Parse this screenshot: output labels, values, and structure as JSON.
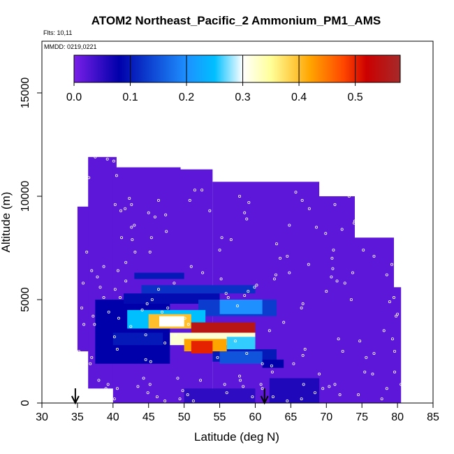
{
  "chart_data": {
    "type": "heatmap",
    "title": "ATOM2 Northeast_Pacific_2 Ammonium_PM1_AMS",
    "flights_note": "Flts: 10,11",
    "dates_note": "MMDD: 0219,0221",
    "xlabel": "Latitude (deg N)",
    "ylabel": "Altitude (m)",
    "xlim": [
      30,
      85
    ],
    "ylim": [
      0,
      17500
    ],
    "xticks": [
      "30",
      "35",
      "40",
      "45",
      "50",
      "55",
      "60",
      "65",
      "70",
      "75",
      "80",
      "85"
    ],
    "yticks": [
      "0",
      "5000",
      "10000",
      "15000"
    ],
    "colorbar": {
      "range": [
        0,
        0.58
      ],
      "ticks": [
        "0.0",
        "0.1",
        "0.2",
        "0.3",
        "0.4",
        "0.5"
      ],
      "tick_values": [
        0,
        0.1,
        0.2,
        0.3,
        0.4,
        0.5
      ],
      "colors": [
        "#7a1fe8",
        "#0000aa",
        "#1e90ff",
        "#00bfff",
        "#ffffff",
        "#ffff99",
        "#ffa500",
        "#ff4500",
        "#cc0000",
        "#a52a2a"
      ],
      "color_stops": [
        0,
        0.08,
        0.2,
        0.25,
        0.3,
        0.35,
        0.42,
        0.48,
        0.52,
        0.58
      ]
    },
    "background_value": 0.02,
    "coverage": [
      {
        "lat": [
          35,
          37.5
        ],
        "alt": [
          2500,
          9500
        ]
      },
      {
        "lat": [
          36.5,
          40.5
        ],
        "alt": [
          700,
          11900
        ]
      },
      {
        "lat": [
          40,
          49.5
        ],
        "alt": [
          0,
          11400
        ]
      },
      {
        "lat": [
          49,
          54
        ],
        "alt": [
          0,
          11300
        ]
      },
      {
        "lat": [
          54,
          69
        ],
        "alt": [
          0,
          10700
        ]
      },
      {
        "lat": [
          68.5,
          74
        ],
        "alt": [
          0,
          10000
        ]
      },
      {
        "lat": [
          74,
          79.5
        ],
        "alt": [
          0,
          8000
        ]
      },
      {
        "lat": [
          79.5,
          80.5
        ],
        "alt": [
          0,
          5600
        ]
      }
    ],
    "features": [
      {
        "lat": [
          37.5,
          48
        ],
        "alt": [
          1900,
          5000
        ],
        "value": 0.08
      },
      {
        "lat": [
          41.5,
          55
        ],
        "alt": [
          4800,
          5300
        ],
        "value": 0.09
      },
      {
        "lat": [
          44,
          60
        ],
        "alt": [
          5300,
          5700
        ],
        "value": 0.12
      },
      {
        "lat": [
          52,
          63
        ],
        "alt": [
          4200,
          5000
        ],
        "value": 0.13
      },
      {
        "lat": [
          55,
          61
        ],
        "alt": [
          4300,
          5000
        ],
        "value": 0.2
      },
      {
        "lat": [
          43,
          50
        ],
        "alt": [
          6000,
          6300
        ],
        "value": 0.1
      },
      {
        "lat": [
          54,
          63
        ],
        "alt": [
          2000,
          2600
        ],
        "value": 0.1
      },
      {
        "lat": [
          55,
          61
        ],
        "alt": [
          1900,
          2500
        ],
        "value": 0.15
      },
      {
        "lat": [
          61,
          64
        ],
        "alt": [
          1700,
          2100
        ],
        "value": 0.08
      },
      {
        "lat": [
          42,
          53
        ],
        "alt": [
          3600,
          4500
        ],
        "value": 0.25
      },
      {
        "lat": [
          45,
          51
        ],
        "alt": [
          3600,
          4300
        ],
        "value": 0.4
      },
      {
        "lat": [
          46.5,
          50
        ],
        "alt": [
          3700,
          4200
        ],
        "value": 0.3
      },
      {
        "lat": [
          51,
          60
        ],
        "alt": [
          3200,
          3900
        ],
        "value": 0.55
      },
      {
        "lat": [
          48,
          60
        ],
        "alt": [
          2800,
          3400
        ],
        "value": 0.32
      },
      {
        "lat": [
          50,
          56
        ],
        "alt": [
          2500,
          3100
        ],
        "value": 0.42
      },
      {
        "lat": [
          51,
          54
        ],
        "alt": [
          2400,
          3000
        ],
        "value": 0.5
      },
      {
        "lat": [
          56,
          60
        ],
        "alt": [
          2600,
          3200
        ],
        "value": 0.26
      },
      {
        "lat": [
          40,
          47
        ],
        "alt": [
          2800,
          3400
        ],
        "value": 0.1
      },
      {
        "lat": [
          62,
          69
        ],
        "alt": [
          0,
          1200
        ],
        "value": 0.06
      },
      {
        "lat": [
          50,
          60
        ],
        "alt": [
          0,
          700
        ],
        "value": 0.05
      }
    ],
    "sample_points": [
      [
        35.8,
        10750
      ],
      [
        36.6,
        10900
      ],
      [
        37.5,
        11900
      ],
      [
        39.2,
        11800
      ],
      [
        40.1,
        11700
      ],
      [
        40.5,
        11000
      ],
      [
        40.3,
        9600
      ],
      [
        41.1,
        9300
      ],
      [
        41.7,
        9400
      ],
      [
        42.6,
        9600
      ],
      [
        42.3,
        9900
      ],
      [
        41.2,
        8000
      ],
      [
        41.8,
        6800
      ],
      [
        40.3,
        5500
      ],
      [
        41.0,
        5100
      ],
      [
        40.8,
        4100
      ],
      [
        40.2,
        3200
      ],
      [
        39.4,
        4400
      ],
      [
        37.2,
        4200
      ],
      [
        37.4,
        3800
      ],
      [
        40.6,
        2600
      ],
      [
        44.6,
        2100
      ],
      [
        45.3,
        2000
      ],
      [
        47.3,
        2900
      ],
      [
        48.8,
        3300
      ],
      [
        50.1,
        4100
      ],
      [
        50.6,
        3800
      ],
      [
        49.1,
        1200
      ],
      [
        49.8,
        600
      ],
      [
        50.5,
        400
      ],
      [
        49.4,
        200
      ],
      [
        45.2,
        900
      ],
      [
        44.3,
        1200
      ],
      [
        44.9,
        500
      ],
      [
        40.6,
        700
      ],
      [
        40.2,
        200
      ],
      [
        43.5,
        800
      ],
      [
        46.2,
        300
      ],
      [
        47.3,
        100
      ],
      [
        51.3,
        100
      ],
      [
        52.3,
        1100
      ],
      [
        54.7,
        2200
      ],
      [
        55.7,
        900
      ],
      [
        56.0,
        500
      ],
      [
        58.3,
        800
      ],
      [
        59.6,
        300
      ],
      [
        61.0,
        700
      ],
      [
        64.5,
        100
      ],
      [
        66.5,
        200
      ],
      [
        68.4,
        500
      ],
      [
        69.5,
        700
      ],
      [
        70.4,
        800
      ],
      [
        71.2,
        900
      ],
      [
        71.9,
        400
      ],
      [
        74.5,
        400
      ],
      [
        75.4,
        1500
      ],
      [
        76.5,
        1400
      ],
      [
        77.8,
        200
      ],
      [
        78.5,
        700
      ],
      [
        79.6,
        1500
      ],
      [
        80.5,
        900
      ],
      [
        79.6,
        2500
      ],
      [
        79.3,
        3100
      ],
      [
        78.1,
        3500
      ],
      [
        79.8,
        4200
      ],
      [
        78.9,
        4900
      ],
      [
        79.5,
        5100
      ],
      [
        80.0,
        4300
      ],
      [
        78.5,
        6200
      ],
      [
        79.2,
        6700
      ],
      [
        76.7,
        7100
      ],
      [
        75.2,
        7400
      ],
      [
        73.7,
        6300
      ],
      [
        71.5,
        5900
      ],
      [
        70.0,
        5400
      ],
      [
        70.7,
        6100
      ],
      [
        70.8,
        7000
      ],
      [
        72.2,
        8400
      ],
      [
        73.9,
        8700
      ],
      [
        74.0,
        8800
      ],
      [
        75.1,
        9000
      ],
      [
        77.8,
        9100
      ],
      [
        76.8,
        9600
      ],
      [
        76.3,
        9100
      ],
      [
        73.2,
        10000
      ],
      [
        71.2,
        9600
      ],
      [
        69.7,
        10100
      ],
      [
        69.2,
        10500
      ],
      [
        66.6,
        9800
      ],
      [
        65.7,
        10200
      ],
      [
        64.8,
        8600
      ],
      [
        63.0,
        7700
      ],
      [
        62.7,
        6000
      ],
      [
        60.2,
        5700
      ],
      [
        59.0,
        5400
      ],
      [
        58.5,
        5200
      ],
      [
        57.5,
        4700
      ],
      [
        56.2,
        5100
      ],
      [
        55.9,
        5300
      ],
      [
        55.2,
        6000
      ],
      [
        52.6,
        6300
      ],
      [
        51.0,
        6600
      ],
      [
        48.6,
        5800
      ],
      [
        46.4,
        5500
      ],
      [
        45.5,
        5000
      ],
      [
        47.7,
        4600
      ],
      [
        46.9,
        4400
      ],
      [
        44.8,
        4800
      ],
      [
        44.1,
        4500
      ],
      [
        44.6,
        3300
      ],
      [
        42.5,
        3700
      ],
      [
        57.2,
        3000
      ],
      [
        58.8,
        2400
      ],
      [
        61.0,
        1900
      ],
      [
        62.3,
        1800
      ],
      [
        62.4,
        1500
      ],
      [
        57.9,
        1100
      ],
      [
        57.8,
        1300
      ],
      [
        60.8,
        900
      ],
      [
        59.9,
        5600
      ],
      [
        55.3,
        8000
      ],
      [
        55.0,
        7400
      ],
      [
        56.6,
        7900
      ],
      [
        58.8,
        8900
      ],
      [
        58.5,
        9200
      ],
      [
        57.8,
        10000
      ],
      [
        59.1,
        9700
      ],
      [
        53.6,
        9300
      ],
      [
        51.5,
        10300
      ],
      [
        52.5,
        10300
      ],
      [
        50.8,
        9800
      ],
      [
        46.4,
        9800
      ],
      [
        45.9,
        9000
      ],
      [
        47.5,
        8300
      ],
      [
        47.4,
        9100
      ],
      [
        45.0,
        9200
      ],
      [
        45.4,
        8000
      ],
      [
        45.2,
        7300
      ],
      [
        43.1,
        7300
      ],
      [
        42.6,
        8500
      ],
      [
        43.0,
        8600
      ],
      [
        42.7,
        7900
      ],
      [
        62.0,
        3500
      ],
      [
        64.0,
        3900
      ],
      [
        66.5,
        4600
      ],
      [
        66.7,
        4800
      ],
      [
        67.5,
        6700
      ],
      [
        64.8,
        6300
      ],
      [
        62.9,
        6200
      ],
      [
        63.5,
        7000
      ],
      [
        64.5,
        7100
      ],
      [
        67.6,
        9400
      ],
      [
        68.6,
        8500
      ],
      [
        69.9,
        8200
      ],
      [
        71.0,
        7400
      ],
      [
        70.9,
        6500
      ],
      [
        72.6,
        5800
      ],
      [
        73.5,
        5000
      ],
      [
        71.7,
        3100
      ],
      [
        74.7,
        3000
      ],
      [
        75.6,
        2200
      ],
      [
        76.7,
        2400
      ],
      [
        72.3,
        2500
      ],
      [
        66.7,
        2300
      ],
      [
        67.0,
        2600
      ],
      [
        65.4,
        1900
      ],
      [
        69.0,
        1400
      ],
      [
        66.8,
        900
      ],
      [
        62.5,
        300
      ],
      [
        37.0,
        2200
      ],
      [
        35.2,
        2500
      ],
      [
        36.8,
        1900
      ],
      [
        38.0,
        1100
      ],
      [
        39.3,
        900
      ],
      [
        39.0,
        700
      ],
      [
        38.7,
        5100
      ],
      [
        38.2,
        5600
      ],
      [
        37.8,
        6100
      ],
      [
        38.7,
        6600
      ],
      [
        40.7,
        6400
      ],
      [
        41.8,
        5900
      ],
      [
        36.3,
        7300
      ],
      [
        37.0,
        6400
      ],
      [
        35.8,
        5800
      ],
      [
        35.6,
        4600
      ],
      [
        35.9,
        3800
      ]
    ],
    "point_color": "#ffffff",
    "flight_markers": [
      {
        "lat": 34.7
      },
      {
        "lat": 61.3
      }
    ]
  }
}
